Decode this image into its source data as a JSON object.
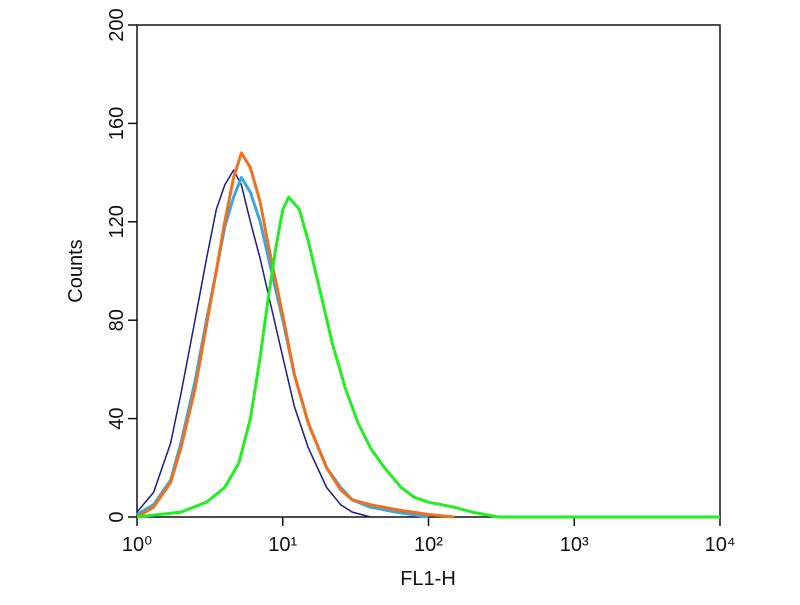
{
  "chart_data": {
    "type": "line",
    "x_label": "FL1-H",
    "y_label": "Counts",
    "log_x": true,
    "xlim": [
      1,
      10000
    ],
    "xticks": [
      {
        "value": 1,
        "label": "10⁰"
      },
      {
        "value": 10,
        "label": "10¹"
      },
      {
        "value": 100,
        "label": "10²"
      },
      {
        "value": 1000,
        "label": "10³"
      },
      {
        "value": 10000,
        "label": "10⁴"
      }
    ],
    "ylim": [
      0,
      200
    ],
    "yticks": [
      0,
      40,
      80,
      120,
      160,
      200
    ],
    "series": [
      {
        "color": "#1c1c8c",
        "x": [
          1,
          1.3,
          1.7,
          2,
          2.5,
          3,
          3.5,
          4,
          4.6,
          5.2,
          6,
          7,
          8,
          10,
          12,
          15,
          20,
          25,
          30,
          40
        ],
        "values": [
          2,
          10,
          30,
          50,
          80,
          105,
          125,
          135,
          141,
          135,
          120,
          105,
          90,
          65,
          45,
          28,
          12,
          5,
          2,
          0
        ]
      },
      {
        "color": "#3aa6e0",
        "x": [
          1,
          1.3,
          1.7,
          2,
          2.5,
          3,
          3.5,
          4,
          4.6,
          5.2,
          6,
          7,
          8,
          10,
          12,
          15,
          20,
          25,
          30,
          40,
          60,
          100
        ],
        "values": [
          1,
          5,
          15,
          30,
          55,
          80,
          100,
          118,
          130,
          138,
          132,
          120,
          105,
          80,
          58,
          38,
          20,
          12,
          7,
          4,
          2,
          0
        ]
      },
      {
        "color": "#f07020",
        "x": [
          1,
          1.3,
          1.7,
          2,
          2.5,
          3,
          3.5,
          4,
          4.6,
          5.2,
          6,
          7,
          8,
          10,
          12,
          15,
          20,
          25,
          30,
          40,
          60,
          100,
          150
        ],
        "values": [
          0,
          4,
          14,
          28,
          52,
          78,
          100,
          120,
          138,
          148,
          142,
          128,
          110,
          82,
          58,
          38,
          20,
          11,
          7,
          5,
          3,
          1,
          0
        ]
      },
      {
        "color": "#22ee22",
        "x": [
          1,
          2,
          3,
          4,
          5,
          6,
          7,
          8,
          9,
          10,
          11,
          13,
          15,
          18,
          22,
          27,
          33,
          40,
          50,
          65,
          80,
          100,
          150,
          200,
          300,
          10000
        ],
        "values": [
          0,
          2,
          6,
          12,
          22,
          40,
          65,
          90,
          110,
          125,
          130,
          125,
          112,
          92,
          70,
          52,
          38,
          28,
          20,
          12,
          8,
          6,
          4,
          2,
          0,
          0
        ]
      }
    ]
  }
}
